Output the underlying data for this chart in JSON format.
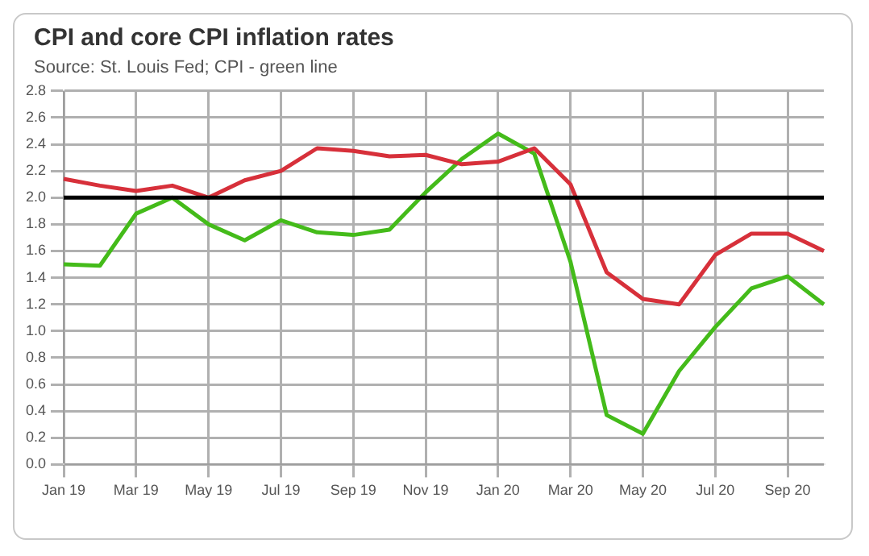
{
  "chart_data": {
    "type": "line",
    "title": "CPI and core CPI inflation rates",
    "subtitle": "Source: St. Louis Fed; CPI - green line",
    "categories": [
      "Jan 19",
      null,
      "Mar 19",
      null,
      "May 19",
      null,
      "Jul 19",
      null,
      "Sep 19",
      null,
      "Nov 19",
      null,
      "Jan 20",
      null,
      "Mar 20",
      null,
      "May 20",
      null,
      "Jul 20",
      null,
      "Sep 20",
      null
    ],
    "series": [
      {
        "color": "#d7303a",
        "values": [
          2.14,
          2.09,
          2.05,
          2.09,
          2.0,
          2.13,
          2.2,
          2.37,
          2.35,
          2.31,
          2.32,
          2.25,
          2.27,
          2.37,
          2.1,
          1.44,
          1.24,
          1.2,
          1.57,
          1.73,
          1.73,
          1.6
        ]
      },
      {
        "color": "#44bb1a",
        "values": [
          1.5,
          1.49,
          1.88,
          2.0,
          1.8,
          1.68,
          1.83,
          1.74,
          1.72,
          1.76,
          2.04,
          2.29,
          2.48,
          2.33,
          1.52,
          0.37,
          0.23,
          0.7,
          1.03,
          1.32,
          1.41,
          1.2
        ]
      }
    ],
    "ylim": [
      0,
      2.8
    ],
    "yticks": [
      {
        "value": 0,
        "label": "0.0"
      },
      {
        "value": 0.2,
        "label": "0.2"
      },
      {
        "value": 0.4,
        "label": "0.4"
      },
      {
        "value": 0.6,
        "label": "0.6"
      },
      {
        "value": 0.8,
        "label": "0.8"
      },
      {
        "value": 1,
        "label": "1.0"
      },
      {
        "value": 1.2,
        "label": "1.2"
      },
      {
        "value": 1.4,
        "label": "1.4"
      },
      {
        "value": 1.6,
        "label": "1.6"
      },
      {
        "value": 1.8,
        "label": "1.8"
      },
      {
        "value": 2,
        "label": "2.0"
      },
      {
        "value": 2.2,
        "label": "2.2"
      },
      {
        "value": 2.4,
        "label": "2.4"
      },
      {
        "value": 2.6,
        "label": "2.6"
      },
      {
        "value": 2.8,
        "label": "2.8"
      }
    ],
    "ref_lines": [
      {
        "axis": "y",
        "value": 2,
        "color": "#000000"
      }
    ],
    "grid": true,
    "marker": "none",
    "line_style": "solid",
    "legend": false
  }
}
